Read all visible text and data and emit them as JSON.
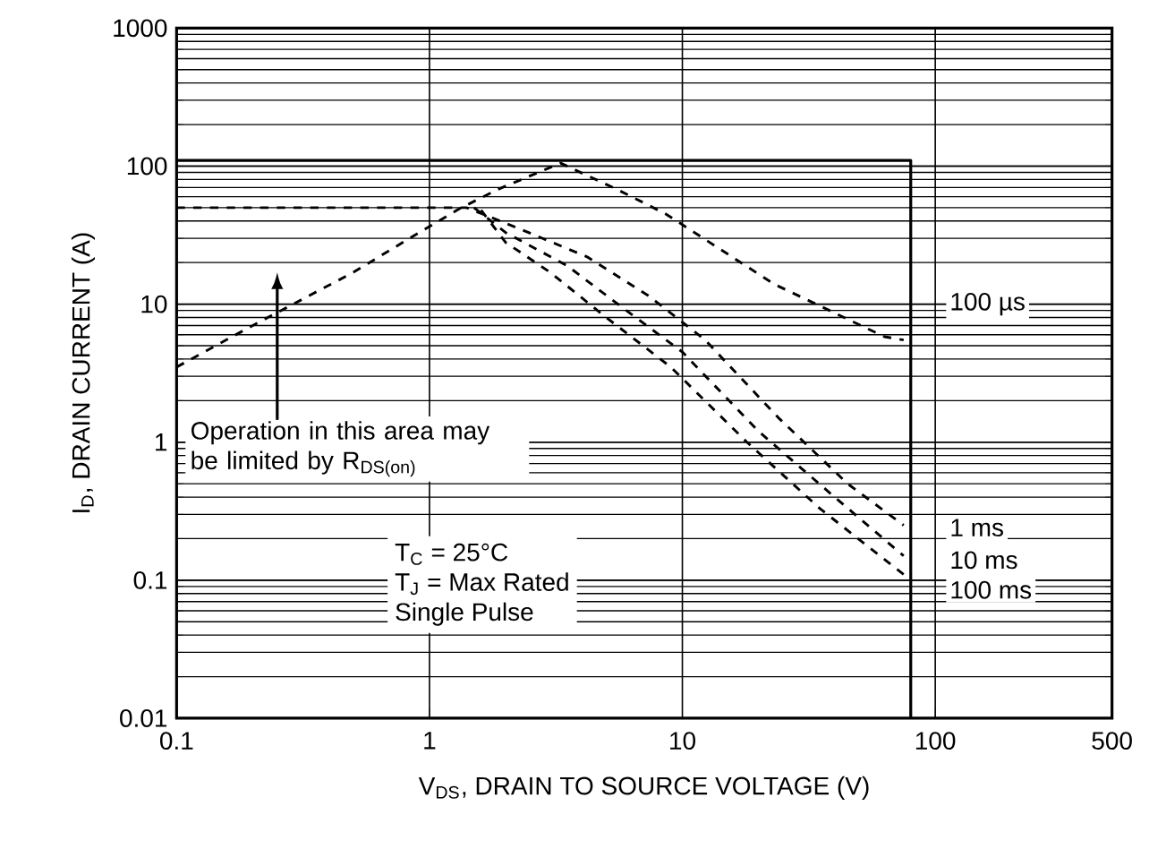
{
  "chart_data": {
    "type": "line",
    "xlabel": "V$_{DS}$, DRAIN TO SOURCE VOLTAGE (V)",
    "ylabel": "I$_{D}$, DRAIN CURRENT (A)",
    "log": "xy",
    "grid": true,
    "xlim": [
      0.1,
      500
    ],
    "ylim": [
      0.01,
      1000
    ],
    "xticks": [
      0.1,
      1,
      10,
      100,
      500
    ],
    "yticks": [
      0.01,
      0.1,
      1,
      10,
      100,
      1000
    ],
    "series": [
      {
        "color": "#000000",
        "line_style": "solid",
        "x": [
          0.1,
          80,
          80
        ],
        "values": [
          110,
          110,
          0.01
        ]
      },
      {
        "color": "#000000",
        "line_style": "dashed",
        "x": [
          0.1,
          0.2,
          0.5,
          0.91,
          1.31,
          1.87,
          3.3,
          5.5,
          8.6,
          23,
          63,
          75
        ],
        "values": [
          3.5,
          7,
          17,
          33,
          49,
          68,
          105,
          68,
          45,
          14,
          5.8,
          5.5
        ]
      },
      {
        "color": "#000000",
        "line_style": "dashed",
        "x": [
          0.1,
          1.4,
          2.2,
          4.2,
          7.3,
          12.3,
          24,
          45,
          75
        ],
        "values": [
          50,
          50,
          36,
          22,
          11.6,
          5.5,
          1.5,
          0.5,
          0.25
        ]
      },
      {
        "color": "#000000",
        "line_style": "dashed",
        "x": [
          1.5,
          2.0,
          3.5,
          6,
          10,
          20,
          40,
          75
        ],
        "values": [
          50,
          33,
          19,
          9,
          4.5,
          1.2,
          0.4,
          0.15
        ]
      },
      {
        "color": "#000000",
        "line_style": "dashed",
        "x": [
          1.6,
          2.0,
          3,
          5,
          9,
          18,
          35,
          75
        ],
        "values": [
          48,
          28,
          17,
          8,
          3.5,
          1,
          0.33,
          0.11
        ]
      }
    ],
    "annotations": [
      "Operation in this area may be limited by R$_{DS(on)}$",
      "T$_{C}$ = 25°C",
      "T$_{J}$ = Max Rated",
      "Single Pulse",
      "100 µs",
      "1 ms",
      "10 ms",
      "100 ms"
    ]
  }
}
